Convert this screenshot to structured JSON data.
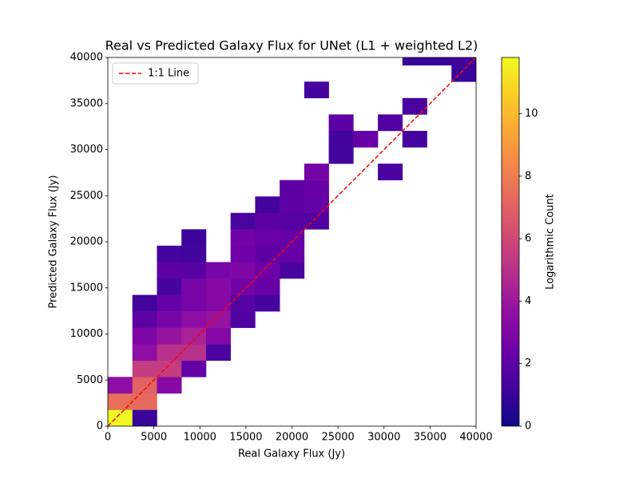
{
  "chart_data": {
    "type": "heatmap",
    "title": "Real vs Predicted Galaxy Flux for UNet (L1 + weighted L2)",
    "xlabel": "Real Galaxy Flux (Jy)",
    "ylabel": "Predicted Galaxy Flux (Jy)",
    "colorbar_label": "Logarithmic Count",
    "colormap": "plasma",
    "clim": [
      0,
      11.8
    ],
    "cticks": [
      0,
      2,
      4,
      6,
      8,
      10
    ],
    "xlim": [
      0,
      40000
    ],
    "ylim": [
      0,
      40000
    ],
    "xticks": [
      0,
      5000,
      10000,
      15000,
      20000,
      25000,
      30000,
      35000,
      40000
    ],
    "yticks": [
      0,
      5000,
      10000,
      15000,
      20000,
      25000,
      30000,
      35000,
      40000
    ],
    "xbins": [
      0,
      2667,
      5333,
      8000,
      10667,
      13333,
      16000,
      18667,
      21333,
      24000,
      26667,
      29333,
      32000,
      34667,
      37333,
      40000
    ],
    "ybins": [
      0,
      1780,
      3560,
      5340,
      7120,
      8900,
      10680,
      12460,
      14240,
      16020,
      17800,
      19580,
      21360,
      23140,
      24920,
      26700,
      28480,
      30260,
      32040,
      33820,
      35600,
      37380,
      39160,
      40940
    ],
    "z": [
      [
        11.8,
        1.0,
        null,
        null,
        null,
        null,
        null,
        null,
        null,
        null,
        null,
        null,
        null,
        null,
        null
      ],
      [
        7.5,
        7.3,
        null,
        null,
        null,
        null,
        null,
        null,
        null,
        null,
        null,
        null,
        null,
        null,
        null
      ],
      [
        3.5,
        7.0,
        3.3,
        null,
        null,
        null,
        null,
        null,
        null,
        null,
        null,
        null,
        null,
        null,
        null
      ],
      [
        null,
        5.5,
        5.5,
        2.2,
        null,
        null,
        null,
        null,
        null,
        null,
        null,
        null,
        null,
        null,
        null
      ],
      [
        null,
        3.5,
        5.0,
        5.0,
        1.5,
        null,
        null,
        null,
        null,
        null,
        null,
        null,
        null,
        null,
        null
      ],
      [
        null,
        3.0,
        3.8,
        4.4,
        3.2,
        null,
        null,
        null,
        null,
        null,
        null,
        null,
        null,
        null,
        null
      ],
      [
        null,
        2.0,
        2.8,
        3.5,
        3.8,
        1.6,
        null,
        null,
        null,
        null,
        null,
        null,
        null,
        null,
        null
      ],
      [
        null,
        1.2,
        2.2,
        2.8,
        3.2,
        1.8,
        1.3,
        null,
        null,
        null,
        null,
        null,
        null,
        null,
        null
      ],
      [
        null,
        null,
        1.3,
        2.8,
        3.2,
        2.6,
        2.3,
        null,
        null,
        null,
        null,
        null,
        null,
        null,
        null
      ],
      [
        null,
        null,
        2.0,
        1.8,
        2.8,
        3.0,
        2.5,
        1.4,
        null,
        null,
        null,
        null,
        null,
        null,
        null
      ],
      [
        null,
        null,
        1.3,
        1.2,
        null,
        2.5,
        2.0,
        2.3,
        null,
        null,
        null,
        null,
        null,
        null,
        null
      ],
      [
        null,
        null,
        null,
        1.1,
        null,
        2.6,
        2.4,
        2.2,
        null,
        null,
        null,
        null,
        null,
        null,
        null
      ],
      [
        null,
        null,
        null,
        null,
        null,
        1.4,
        2.0,
        1.8,
        1.6,
        null,
        null,
        null,
        null,
        null,
        null
      ],
      [
        null,
        null,
        null,
        null,
        null,
        null,
        1.3,
        2.0,
        2.2,
        null,
        null,
        null,
        null,
        null,
        null
      ],
      [
        null,
        null,
        null,
        null,
        null,
        null,
        null,
        2.0,
        2.3,
        null,
        null,
        null,
        null,
        null,
        null
      ],
      [
        null,
        null,
        null,
        null,
        null,
        null,
        null,
        null,
        2.7,
        null,
        null,
        1.4,
        null,
        null,
        null
      ],
      [
        null,
        null,
        null,
        null,
        null,
        null,
        null,
        null,
        null,
        1.3,
        null,
        null,
        null,
        null,
        null
      ],
      [
        null,
        null,
        null,
        null,
        null,
        null,
        null,
        null,
        null,
        1.3,
        2.3,
        null,
        1.3,
        null,
        null
      ],
      [
        null,
        null,
        null,
        null,
        null,
        null,
        null,
        null,
        null,
        2.0,
        null,
        1.6,
        null,
        null,
        null
      ],
      [
        null,
        null,
        null,
        null,
        null,
        null,
        null,
        null,
        null,
        null,
        null,
        null,
        1.4,
        null,
        null
      ],
      [
        null,
        null,
        null,
        null,
        null,
        null,
        null,
        null,
        1.3,
        null,
        null,
        null,
        null,
        null,
        null
      ],
      [
        null,
        null,
        null,
        null,
        null,
        null,
        null,
        null,
        null,
        null,
        null,
        null,
        null,
        null,
        1.0
      ],
      [
        null,
        null,
        null,
        null,
        null,
        null,
        null,
        null,
        null,
        null,
        null,
        null,
        1.0,
        1.0,
        1.2
      ]
    ],
    "line": {
      "name": "1:1 Line",
      "color": "#ff0000",
      "x": [
        0,
        40000
      ],
      "y": [
        0,
        40000
      ]
    },
    "legend": "upper left"
  }
}
